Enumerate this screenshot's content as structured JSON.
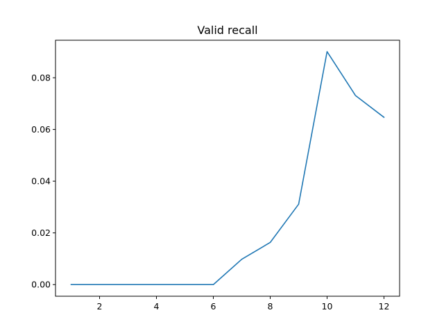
{
  "chart_data": {
    "type": "line",
    "title": "Valid recall",
    "xlabel": "",
    "ylabel": "",
    "xlim": [
      0.45,
      12.55
    ],
    "ylim": [
      -0.0045,
      0.0945
    ],
    "x_ticks": [
      2,
      4,
      6,
      8,
      10,
      12
    ],
    "x_tick_labels": [
      "2",
      "4",
      "6",
      "8",
      "10",
      "12"
    ],
    "y_ticks": [
      0.0,
      0.02,
      0.04,
      0.06,
      0.08
    ],
    "y_tick_labels": [
      "0.00",
      "0.02",
      "0.04",
      "0.06",
      "0.08"
    ],
    "grid": false,
    "legend": "none",
    "series": [
      {
        "color": "#1f77b4",
        "x": [
          1,
          2,
          3,
          4,
          5,
          6,
          7,
          8,
          9,
          10,
          11,
          12
        ],
        "y": [
          0.0,
          0.0,
          0.0,
          0.0,
          0.0,
          0.0,
          0.0098,
          0.0163,
          0.0311,
          0.0901,
          0.0731,
          0.0647
        ]
      }
    ]
  }
}
